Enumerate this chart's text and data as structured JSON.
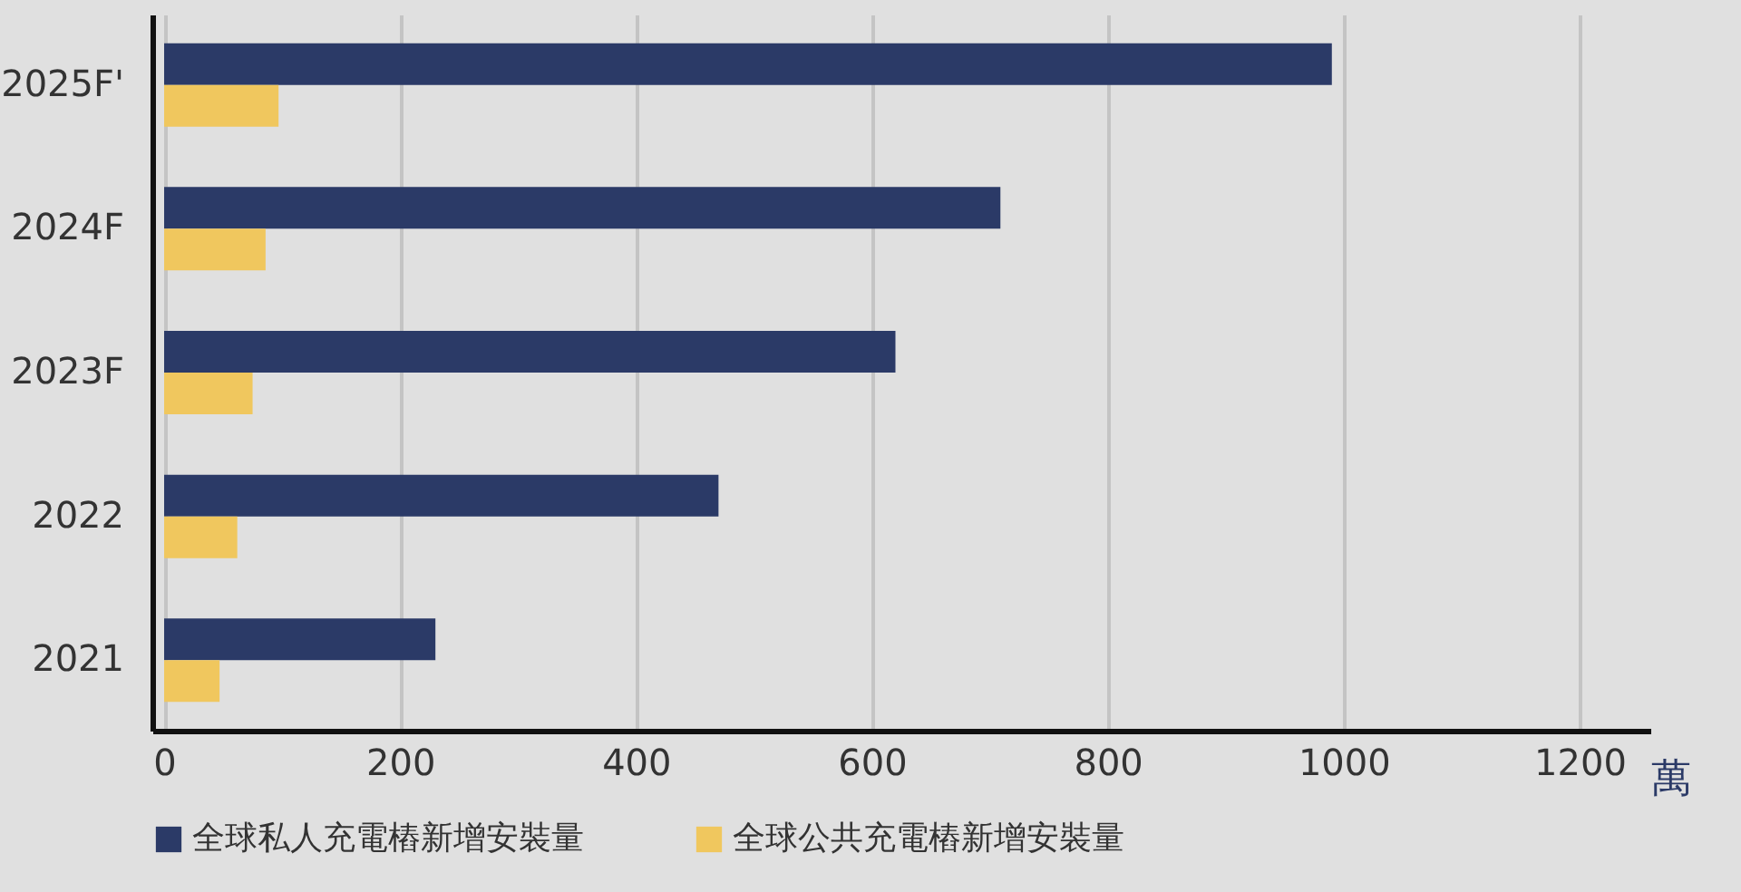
{
  "chart_data": {
    "type": "bar",
    "orientation": "horizontal",
    "xlabel": "萬",
    "categories": [
      "2025F'",
      "2024F",
      "2023F",
      "2022",
      "2021"
    ],
    "series": [
      {
        "name": "全球私人充電樁新增安裝量",
        "color": "#2b3a67",
        "values": [
          990,
          709,
          620,
          470,
          230
        ]
      },
      {
        "name": "全球公共充電樁新增安裝量",
        "color": "#f0c75e",
        "values": [
          97,
          86,
          75,
          62,
          47
        ]
      }
    ],
    "xlim": [
      -10,
      1260
    ],
    "xticks": [
      0,
      200,
      400,
      600,
      800,
      1000,
      1200
    ],
    "grid": "x",
    "legend": "bottom"
  }
}
